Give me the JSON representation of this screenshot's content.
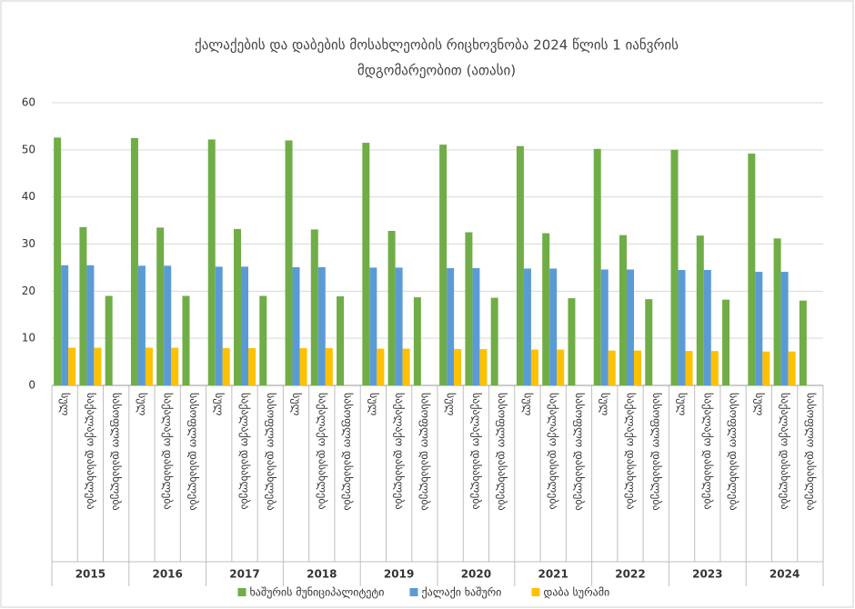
{
  "chart_data": {
    "type": "bar",
    "title": [
      "ქალაქების და დაბების მოსახლეობის რიცხოვნობა 2024 წლის 1 იანვრის",
      "მდგომარეობით (ათასი)"
    ],
    "years": [
      "2015",
      "2016",
      "2017",
      "2018",
      "2019",
      "2020",
      "2021",
      "2022",
      "2023",
      "2024"
    ],
    "categories": [
      "სულ",
      "საქალაქო დასახლება",
      "სასოფლო დასახლება",
      "სულ",
      "საქალაქო დასახლება",
      "სასოფლო დასახლება",
      "სულ",
      "საქალაქო დასახლება",
      "სასოფლო დასახლება",
      "სულ",
      "საქალაქო დასახლება",
      "სასოფლო დასახლება",
      "სულ",
      "საქალაქო დასახლება",
      "სასოფლო დასახლება",
      "სულ",
      "საქალაქო დასახლება",
      "სასოფლო დასახლება",
      "სულ",
      "საქალაქო დასახლება",
      "სასოფლო დასახლება",
      "სულ",
      "საქალაქო დასახლება",
      "სასოფლო დასახლება",
      "სულ",
      "საქალაქო დასახლება",
      "სასოფლო დასახლება",
      "სულ",
      "საქალაქო დასახლება",
      "სასოფლო დასახლება"
    ],
    "series": [
      {
        "name": "ხაშურის მუნიციპალიტეტი",
        "color": "#70ad47",
        "values": [
          52.6,
          33.6,
          19.0,
          52.5,
          33.5,
          19.0,
          52.2,
          33.2,
          19.0,
          52.0,
          33.1,
          18.9,
          51.5,
          32.8,
          18.7,
          51.1,
          32.5,
          18.6,
          50.8,
          32.3,
          18.5,
          50.2,
          31.9,
          18.3,
          50.0,
          31.8,
          18.2,
          49.2,
          31.2,
          18.0
        ]
      },
      {
        "name": "ქალაქი ხაშური",
        "color": "#5b9bd5",
        "values": [
          25.5,
          25.5,
          null,
          25.4,
          25.4,
          null,
          25.2,
          25.2,
          null,
          25.1,
          25.1,
          null,
          25.0,
          25.0,
          null,
          24.9,
          24.9,
          null,
          24.8,
          24.8,
          null,
          24.6,
          24.6,
          null,
          24.5,
          24.5,
          null,
          24.1,
          24.1,
          null
        ]
      },
      {
        "name": "დაბა სურამი",
        "color": "#ffc000",
        "values": [
          8.0,
          8.0,
          null,
          8.0,
          8.0,
          null,
          7.9,
          7.9,
          null,
          7.9,
          7.9,
          null,
          7.8,
          7.8,
          null,
          7.7,
          7.7,
          null,
          7.6,
          7.6,
          null,
          7.4,
          7.4,
          null,
          7.3,
          7.3,
          null,
          7.2,
          7.2,
          null
        ]
      }
    ],
    "ylim": [
      0,
      60
    ],
    "yticks": [
      0,
      10,
      20,
      30,
      40,
      50,
      60
    ],
    "grid": true
  }
}
